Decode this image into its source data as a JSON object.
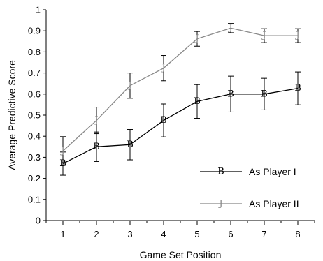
{
  "chart_data": {
    "type": "line",
    "xlabel": "Game Set Position",
    "ylabel": "Average Predictive Score",
    "x": [
      1,
      2,
      3,
      4,
      5,
      6,
      7,
      8
    ],
    "xlim": [
      0.5,
      8.5
    ],
    "ylim": [
      0,
      1
    ],
    "x_ticks": [
      "1",
      "2",
      "3",
      "4",
      "5",
      "6",
      "7",
      "8"
    ],
    "y_ticks": [
      "0",
      "0.1",
      "0.2",
      "0.3",
      "0.4",
      "0.5",
      "0.6",
      "0.7",
      "0.8",
      "0.9",
      "1"
    ],
    "grid": false,
    "legend_position": "bottom-right",
    "series": [
      {
        "name": "As Player I",
        "marker": "B",
        "color": "#000000",
        "values": [
          0.27,
          0.35,
          0.36,
          0.475,
          0.565,
          0.6,
          0.6,
          0.627
        ],
        "error": [
          0.055,
          0.07,
          0.072,
          0.078,
          0.08,
          0.085,
          0.075,
          0.078
        ]
      },
      {
        "name": "As Player II",
        "marker": "J",
        "color": "#888888",
        "values": [
          0.33,
          0.475,
          0.64,
          0.723,
          0.862,
          0.913,
          0.877,
          0.877
        ],
        "error": [
          0.068,
          0.063,
          0.06,
          0.06,
          0.035,
          0.022,
          0.033,
          0.033
        ]
      }
    ]
  }
}
